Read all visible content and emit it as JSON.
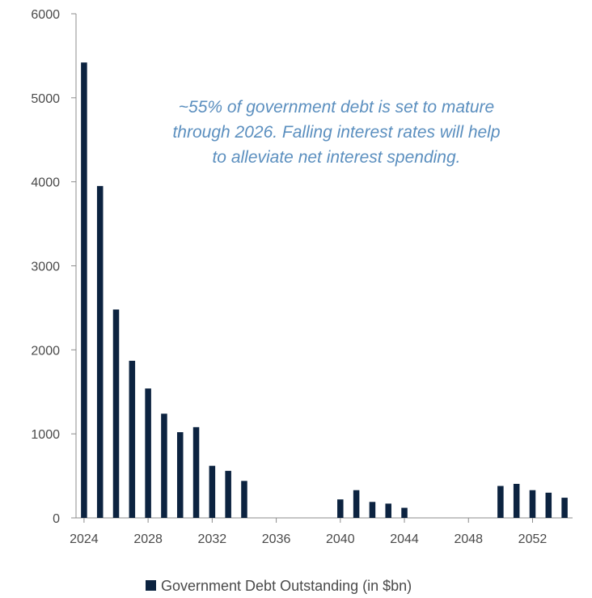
{
  "chart_data": {
    "type": "bar",
    "x": [
      2024,
      2025,
      2026,
      2027,
      2028,
      2029,
      2030,
      2031,
      2032,
      2033,
      2034,
      2035,
      2036,
      2037,
      2038,
      2039,
      2040,
      2041,
      2042,
      2043,
      2044,
      2045,
      2046,
      2047,
      2048,
      2049,
      2050,
      2051,
      2052,
      2053,
      2054
    ],
    "series": [
      {
        "name": "Government Debt Outstanding (in $bn)",
        "values": [
          5420,
          3950,
          2480,
          1870,
          1540,
          1240,
          1020,
          1080,
          620,
          560,
          440,
          0,
          0,
          0,
          0,
          0,
          220,
          330,
          190,
          170,
          120,
          0,
          0,
          0,
          0,
          0,
          380,
          405,
          330,
          300,
          240
        ],
        "color": "#0c2340"
      }
    ],
    "ylim": [
      0,
      6000
    ],
    "yticks": [
      0,
      1000,
      2000,
      3000,
      4000,
      5000,
      6000
    ],
    "xlim": [
      2023.5,
      2054.5
    ],
    "xticks": [
      2024,
      2028,
      2032,
      2036,
      2040,
      2044,
      2048,
      2052
    ],
    "xlabel": "",
    "ylabel": "",
    "title": "",
    "annotation": [
      "~55% of government debt is set to mature",
      "through 2026. Falling interest rates will help",
      "to alleviate net interest spending."
    ],
    "annotation_color": "#5b8fbf",
    "legend_position": "bottom-center",
    "grid": false
  }
}
